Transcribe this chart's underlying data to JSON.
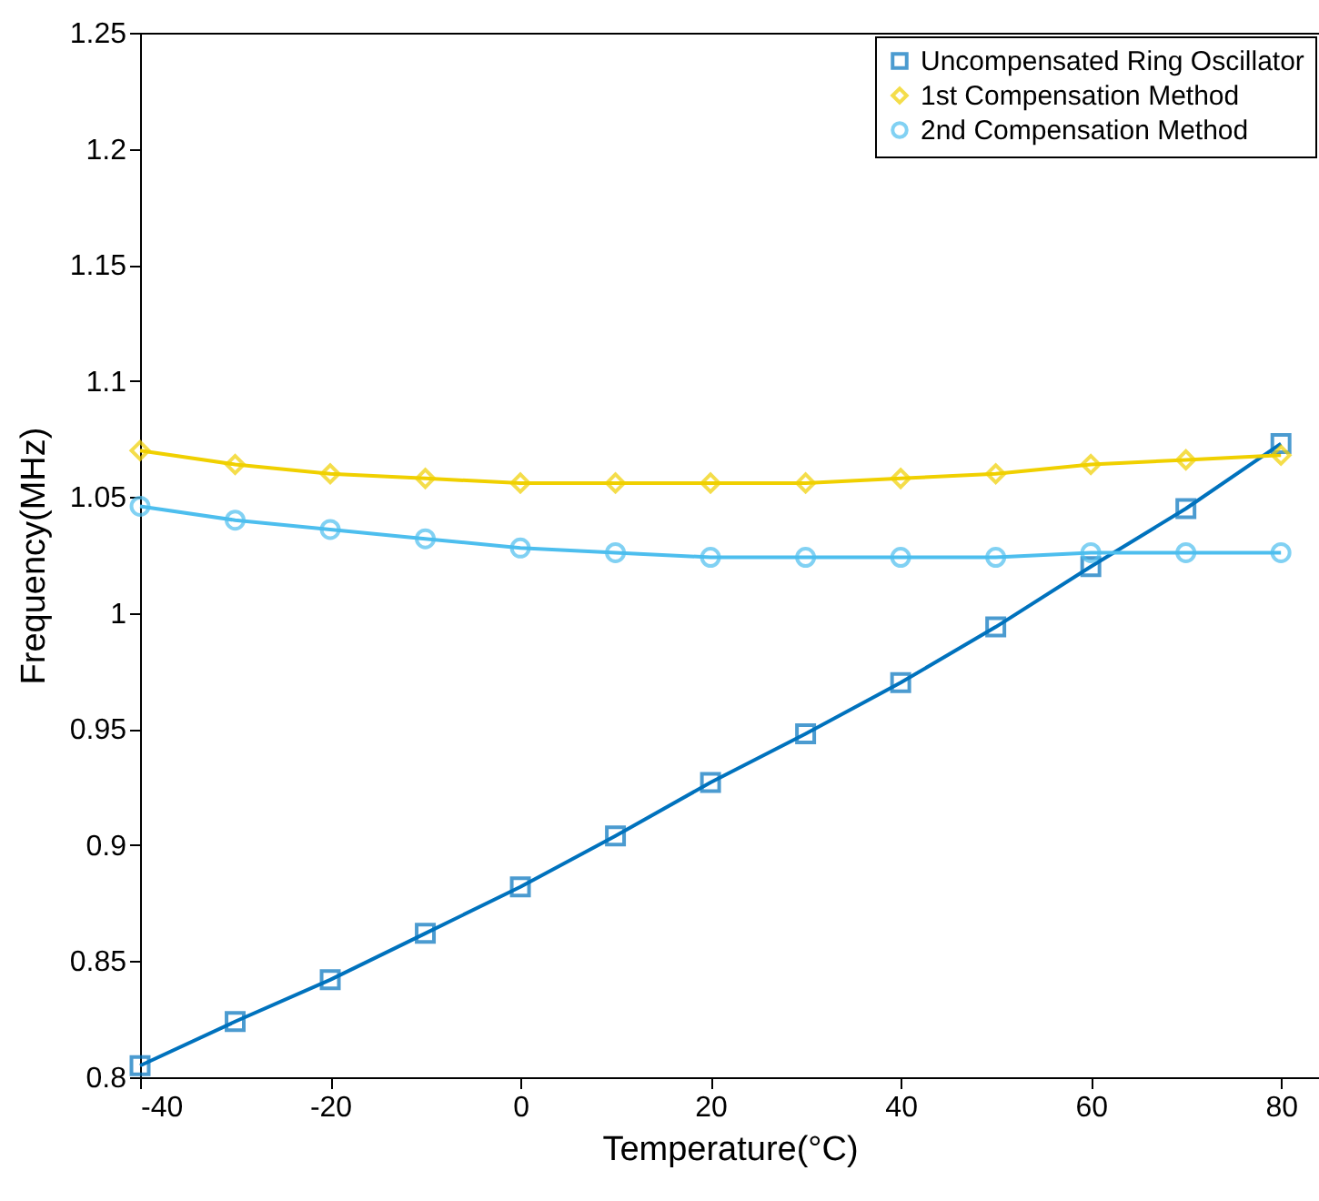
{
  "chart_data": {
    "type": "line",
    "xlabel": "Temperature(°C)",
    "ylabel": "Frequency(MHz)",
    "xlim": [
      -40,
      84
    ],
    "ylim": [
      0.8,
      1.25
    ],
    "xticks": [
      -40,
      -20,
      0,
      20,
      40,
      60,
      80
    ],
    "yticks": [
      0.8,
      0.85,
      0.9,
      0.95,
      1,
      1.05,
      1.1,
      1.15,
      1.2,
      1.25
    ],
    "grid": false,
    "legend": "top right",
    "x": [
      -40,
      -30,
      -20,
      -10,
      0,
      10,
      20,
      30,
      40,
      50,
      60,
      70,
      80
    ],
    "series": [
      {
        "name": "Uncompensated Ring Oscillator",
        "color": "#0072bd",
        "marker": "square",
        "values": [
          0.805,
          0.824,
          0.842,
          0.862,
          0.882,
          0.904,
          0.927,
          0.948,
          0.97,
          0.994,
          1.02,
          1.045,
          1.073
        ]
      },
      {
        "name": "1st Compensation Method",
        "color": "#f0d000",
        "marker": "diamond",
        "values": [
          1.07,
          1.064,
          1.06,
          1.058,
          1.056,
          1.056,
          1.056,
          1.056,
          1.058,
          1.06,
          1.064,
          1.066,
          1.068
        ]
      },
      {
        "name": "2nd Compensation Method",
        "color": "#4dbeee",
        "marker": "circle",
        "values": [
          1.046,
          1.04,
          1.036,
          1.032,
          1.028,
          1.026,
          1.024,
          1.024,
          1.024,
          1.024,
          1.026,
          1.026,
          1.026
        ]
      }
    ]
  }
}
